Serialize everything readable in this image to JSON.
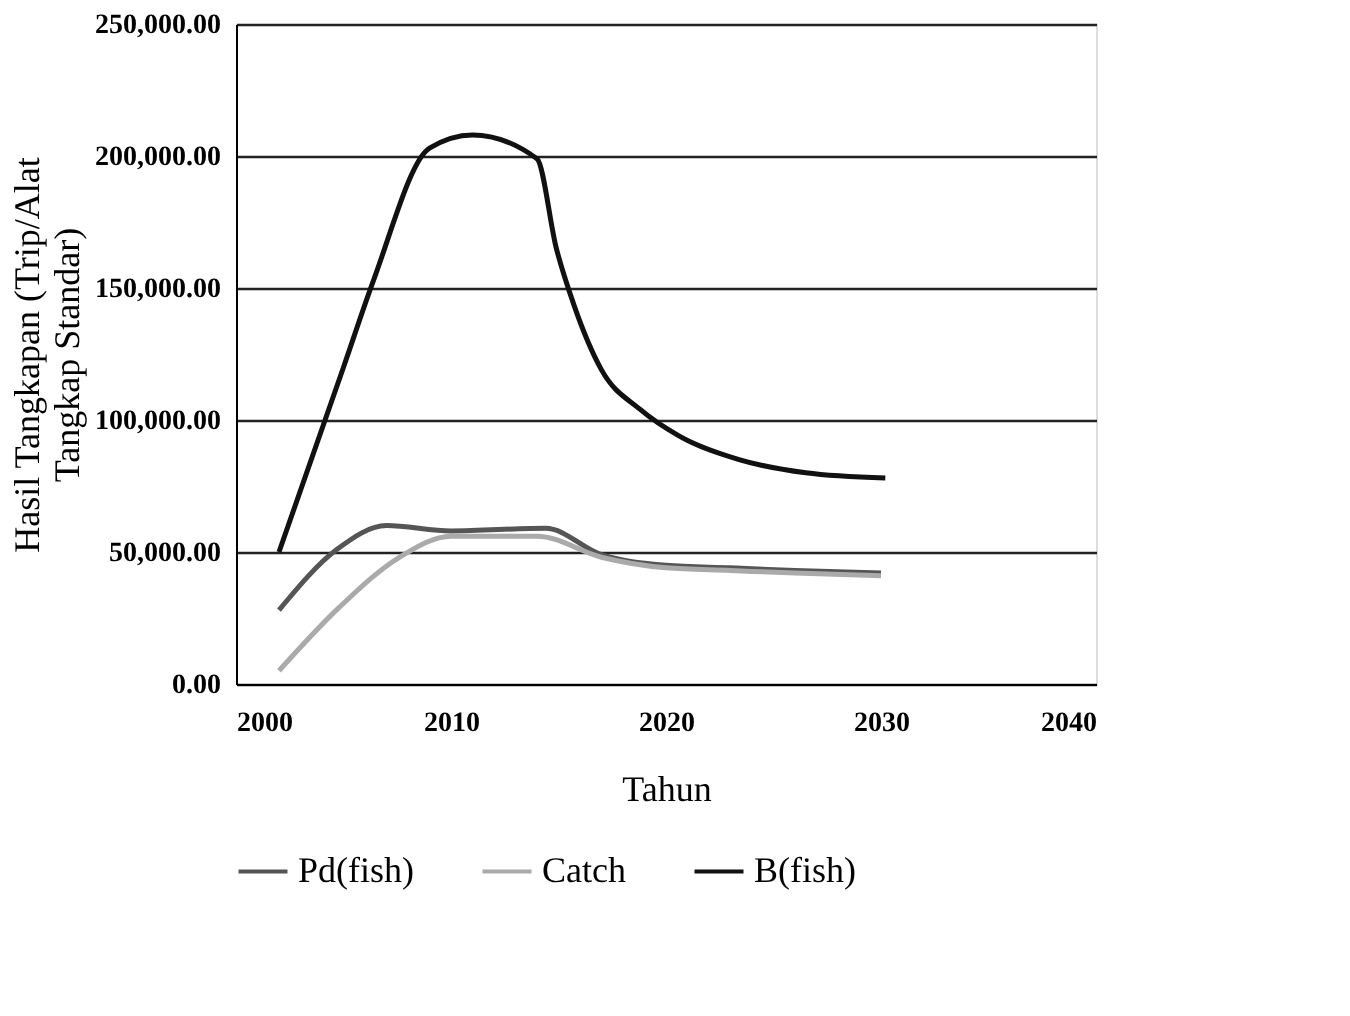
{
  "chart_data": {
    "type": "line",
    "xlabel": "Tahun",
    "ylabel": "Hasil Tangkapan (Trip/Alat\nTangkap Standar)",
    "xlim": [
      2000,
      2040
    ],
    "xticks": [
      2000,
      2010,
      2020,
      2030,
      2040
    ],
    "ylim": [
      0,
      250000
    ],
    "yticks": [
      {
        "value": 0,
        "label": "0.00"
      },
      {
        "value": 50000,
        "label": "50,000.00"
      },
      {
        "value": 100000,
        "label": "100,000.00"
      },
      {
        "value": 150000,
        "label": "150,000.00"
      },
      {
        "value": 200000,
        "label": "200,000.00"
      },
      {
        "value": 250000,
        "label": "250,000.00"
      }
    ],
    "grid": "y",
    "legend": "bottom",
    "marker": "none",
    "line_style": "solid",
    "series": [
      {
        "name": "Pd(fish)",
        "color": "#555555",
        "x": [
          2002,
          2004.7,
          2007,
          2010,
          2014.4,
          2017,
          2020,
          2023,
          2026,
          2030
        ],
        "values": [
          28000,
          51000,
          60000,
          58000,
          59000,
          49000,
          45000,
          44000,
          43000,
          42000
        ]
      },
      {
        "name": "Catch",
        "color": "#aaaaaa",
        "x": [
          2002,
          2004.8,
          2007.6,
          2010,
          2014,
          2017,
          2020,
          2023,
          2026,
          2030
        ],
        "values": [
          5000,
          29000,
          48000,
          56000,
          56000,
          48000,
          44000,
          43000,
          42000,
          41000
        ]
      },
      {
        "name": "B(fish)",
        "color": "#111111",
        "x": [
          2002,
          2005,
          2006.4,
          2009,
          2011,
          2014,
          2014.9,
          2015.7,
          2017,
          2018.8,
          2020.6,
          2023.4,
          2026.5,
          2030.2
        ],
        "values": [
          50000,
          120000,
          153000,
          203000,
          208000,
          199000,
          165000,
          144000,
          119000,
          104000,
          94000,
          85000,
          80000,
          78000
        ]
      }
    ]
  }
}
